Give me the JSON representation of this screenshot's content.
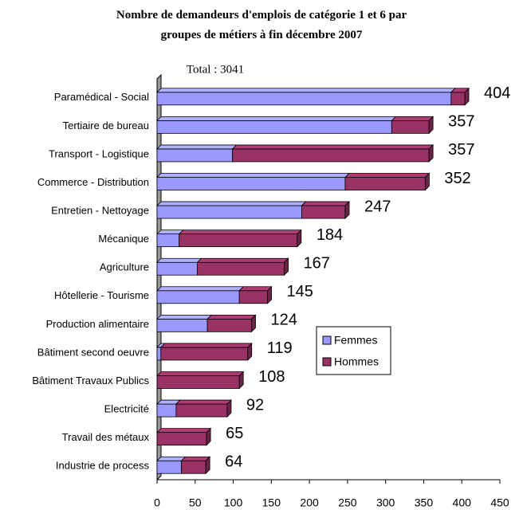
{
  "chart_data": {
    "type": "stacked_barh_3d",
    "title": "Nombre de demandeurs d'emplois de catégorie 1 et 6 par groupes de métiers à fin décembre 2007",
    "subtitle": "Total : 3041",
    "categories": [
      "Paramédical - Social",
      "Tertiaire de bureau",
      "Transport - Logistique",
      "Commerce - Distribution",
      "Entretien - Nettoyage",
      "Mécanique",
      "Agriculture",
      "Hôtellerie - Tourisme",
      "Production alimentaire",
      "Bâtiment second oeuvre",
      "Bâtiment Travaux Publics",
      "Electricité",
      "Travail des métaux",
      "Industrie de process"
    ],
    "series": [
      {
        "name": "Femmes",
        "color": "#9999ff",
        "values": [
          386,
          308,
          99,
          247,
          190,
          29,
          53,
          108,
          66,
          5,
          0,
          25,
          0,
          32
        ]
      },
      {
        "name": "Hommes",
        "color": "#993366",
        "values": [
          18,
          49,
          258,
          105,
          57,
          155,
          114,
          37,
          58,
          114,
          108,
          67,
          65,
          32
        ]
      }
    ],
    "totals": [
      404,
      357,
      357,
      352,
      247,
      184,
      167,
      145,
      124,
      119,
      108,
      92,
      65,
      64
    ],
    "xlim": [
      0,
      450
    ],
    "xticks": [
      0,
      50,
      100,
      150,
      200,
      250,
      300,
      350,
      400,
      450
    ],
    "legend": "right"
  }
}
